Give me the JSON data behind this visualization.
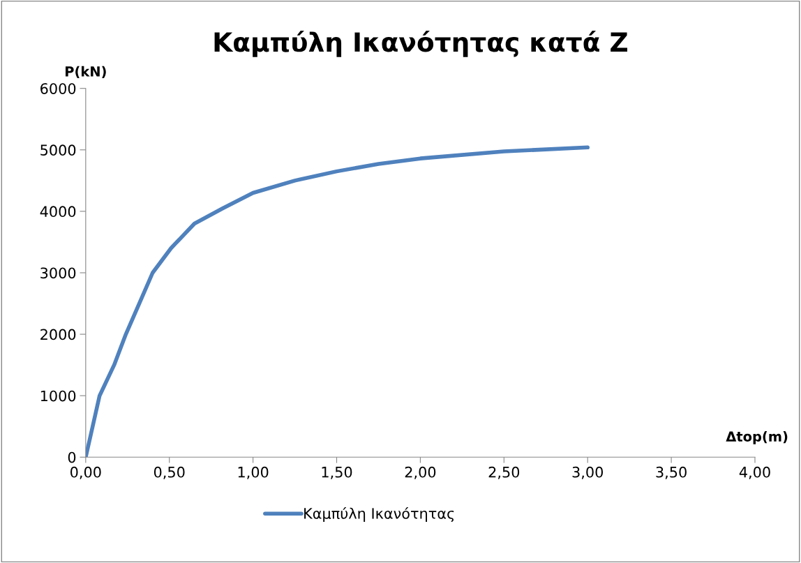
{
  "chart_data": {
    "type": "line",
    "title": "Καμπύλη Ικανότητας κατά Z",
    "xlabel": "Δtop(m)",
    "ylabel": "P(kN)",
    "series": [
      {
        "name": "Καμπύλη Ικανότητας",
        "color": "#4f81bd",
        "x": [
          0,
          0.083,
          0.17,
          0.24,
          0.32,
          0.4,
          0.51,
          0.65,
          0.82,
          1.0,
          1.25,
          1.5,
          1.75,
          2.0,
          2.5,
          3.0
        ],
        "values": [
          0,
          1000,
          1500,
          2000,
          2500,
          3000,
          3400,
          3800,
          4050,
          4300,
          4500,
          4650,
          4770,
          4860,
          4975,
          5040
        ]
      }
    ],
    "xlim": [
      0,
      4
    ],
    "xticks": [
      {
        "value": 0,
        "label": "0,00"
      },
      {
        "value": 0.5,
        "label": "0,50"
      },
      {
        "value": 1,
        "label": "1,00"
      },
      {
        "value": 1.5,
        "label": "1,50"
      },
      {
        "value": 2,
        "label": "2,00"
      },
      {
        "value": 2.5,
        "label": "2,50"
      },
      {
        "value": 3,
        "label": "3,00"
      },
      {
        "value": 3.5,
        "label": "3,50"
      },
      {
        "value": 4,
        "label": "4,00"
      }
    ],
    "ylim": [
      0,
      6000
    ],
    "yticks": [
      0,
      1000,
      2000,
      3000,
      4000,
      5000,
      6000
    ],
    "grid": false,
    "legend": "bottom",
    "marker": "none",
    "line_style": "solid"
  }
}
